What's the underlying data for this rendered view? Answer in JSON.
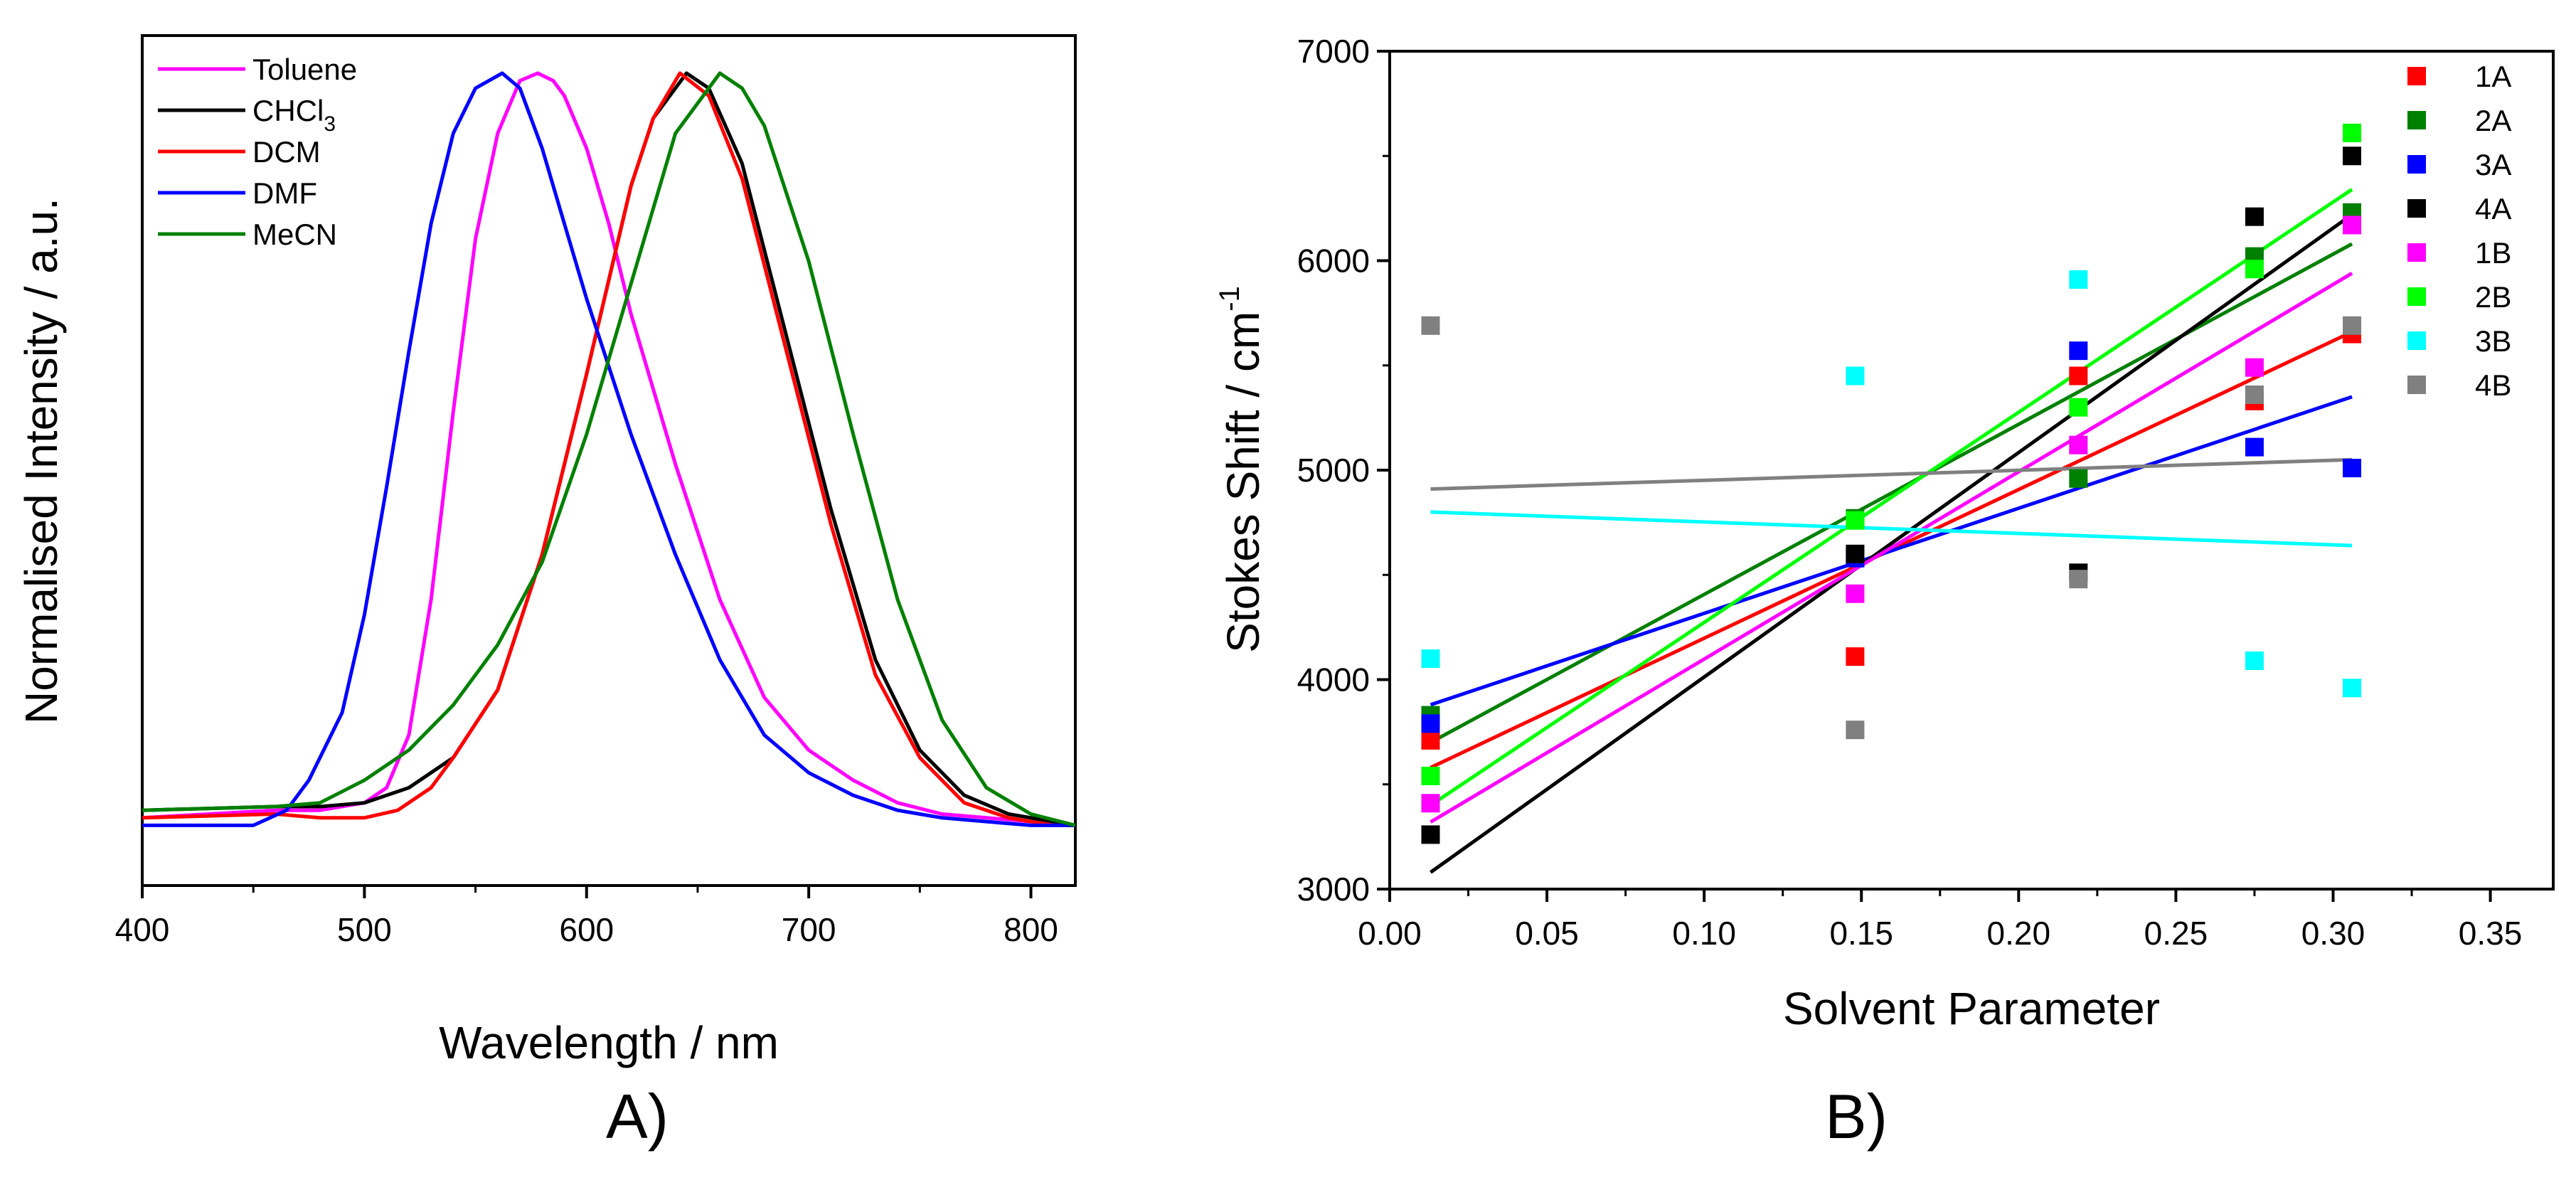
{
  "chart_data": [
    {
      "type": "line",
      "panel_label": "A)",
      "xlabel": "Wavelength / nm",
      "ylabel": "Normalised Intensity / a.u.",
      "xlim": [
        400,
        820
      ],
      "ylim": [
        -0.08,
        1.05
      ],
      "xticks": [
        "400",
        "500",
        "600",
        "700",
        "800"
      ],
      "legend_position": "top-left",
      "series": [
        {
          "name": "Toluene",
          "label_main": "Toluene",
          "label_sub": "",
          "color": "#ff00ff",
          "x": [
            400,
            460,
            480,
            500,
            510,
            520,
            530,
            540,
            550,
            560,
            570,
            578,
            585,
            590,
            600,
            610,
            620,
            640,
            660,
            680,
            700,
            720,
            740,
            760,
            780,
            800,
            820
          ],
          "y": [
            0.01,
            0.02,
            0.02,
            0.03,
            0.05,
            0.12,
            0.3,
            0.55,
            0.78,
            0.92,
            0.99,
            1.0,
            0.99,
            0.97,
            0.9,
            0.8,
            0.68,
            0.48,
            0.3,
            0.17,
            0.1,
            0.06,
            0.03,
            0.015,
            0.01,
            0.005,
            0.0
          ]
        },
        {
          "name": "CHCl3",
          "label_main": "CHCl",
          "label_sub": "3",
          "color": "#000000",
          "x": [
            400,
            460,
            480,
            500,
            520,
            540,
            560,
            580,
            600,
            620,
            630,
            645,
            655,
            670,
            690,
            710,
            730,
            750,
            770,
            790,
            810,
            820
          ],
          "y": [
            0.02,
            0.025,
            0.025,
            0.03,
            0.05,
            0.09,
            0.18,
            0.36,
            0.6,
            0.85,
            0.94,
            1.0,
            0.98,
            0.88,
            0.65,
            0.42,
            0.22,
            0.1,
            0.04,
            0.015,
            0.005,
            0.0
          ]
        },
        {
          "name": "DCM",
          "label_main": "DCM",
          "label_sub": "",
          "color": "#ff0000",
          "x": [
            400,
            460,
            480,
            500,
            515,
            530,
            540,
            560,
            580,
            600,
            620,
            630,
            642,
            655,
            670,
            690,
            710,
            730,
            750,
            770,
            790,
            810,
            820
          ],
          "y": [
            0.01,
            0.015,
            0.01,
            0.01,
            0.02,
            0.05,
            0.09,
            0.18,
            0.36,
            0.6,
            0.85,
            0.94,
            1.0,
            0.97,
            0.86,
            0.63,
            0.4,
            0.2,
            0.09,
            0.03,
            0.01,
            0.0,
            0.0
          ]
        },
        {
          "name": "DMF",
          "label_main": "DMF",
          "label_sub": "",
          "color": "#0000ff",
          "x": [
            400,
            450,
            465,
            475,
            490,
            500,
            510,
            520,
            530,
            540,
            550,
            562,
            570,
            580,
            590,
            600,
            620,
            640,
            660,
            680,
            700,
            720,
            740,
            760,
            780,
            800,
            820
          ],
          "y": [
            0.0,
            0.0,
            0.02,
            0.06,
            0.15,
            0.28,
            0.45,
            0.63,
            0.8,
            0.92,
            0.98,
            1.0,
            0.98,
            0.9,
            0.8,
            0.7,
            0.52,
            0.36,
            0.22,
            0.12,
            0.07,
            0.04,
            0.02,
            0.01,
            0.005,
            0.0,
            0.0
          ]
        },
        {
          "name": "MeCN",
          "label_main": "MeCN",
          "label_sub": "",
          "color": "#008000",
          "x": [
            400,
            460,
            480,
            500,
            520,
            540,
            560,
            580,
            600,
            620,
            640,
            660,
            670,
            680,
            700,
            720,
            740,
            760,
            780,
            800,
            820
          ],
          "y": [
            0.02,
            0.025,
            0.03,
            0.06,
            0.1,
            0.16,
            0.24,
            0.35,
            0.52,
            0.72,
            0.92,
            1.0,
            0.98,
            0.93,
            0.75,
            0.52,
            0.3,
            0.14,
            0.05,
            0.015,
            0.0
          ]
        }
      ]
    },
    {
      "type": "scatter",
      "panel_label": "B)",
      "xlabel": "Solvent Parameter",
      "ylabel_main": "Stokes Shift / cm",
      "ylabel_sup": "-1",
      "xlim": [
        0.0,
        0.37
      ],
      "ylim": [
        3000,
        7000
      ],
      "xticks": [
        "0.00",
        "0.05",
        "0.10",
        "0.15",
        "0.20",
        "0.25",
        "0.30",
        "0.35"
      ],
      "yticks": [
        "3000",
        "4000",
        "5000",
        "6000",
        "7000"
      ],
      "legend_position": "top-right",
      "x": [
        0.013,
        0.148,
        0.219,
        0.275,
        0.306
      ],
      "series": [
        {
          "name": "1A",
          "color": "#ff0000",
          "y": [
            3710,
            4110,
            5450,
            5330,
            5650
          ],
          "fit": [
            3580,
            5660
          ]
        },
        {
          "name": "2A",
          "color": "#008000",
          "y": [
            3830,
            4770,
            4960,
            6020,
            6230
          ],
          "fit": [
            3700,
            6080
          ]
        },
        {
          "name": "3A",
          "color": "#0000ff",
          "y": [
            3790,
            4580,
            5570,
            5110,
            5010
          ],
          "fit": [
            3880,
            5350
          ]
        },
        {
          "name": "4A",
          "color": "#000000",
          "y": [
            3260,
            4600,
            4510,
            6210,
            6500
          ],
          "fit": [
            3080,
            6220
          ]
        },
        {
          "name": "1B",
          "color": "#ff00ff",
          "y": [
            3410,
            4410,
            5120,
            5490,
            6170
          ],
          "fit": [
            3320,
            5940
          ]
        },
        {
          "name": "2B",
          "color": "#00ff00",
          "y": [
            3540,
            4760,
            5300,
            5960,
            6610
          ],
          "fit": [
            3400,
            6340
          ]
        },
        {
          "name": "3B",
          "color": "#00ffff",
          "y": [
            4100,
            5450,
            5910,
            4090,
            3960
          ],
          "fit": [
            4800,
            4640
          ]
        },
        {
          "name": "4B",
          "color": "#808080",
          "y": [
            5690,
            3760,
            4480,
            5360,
            5690
          ],
          "fit": [
            4910,
            5050
          ]
        }
      ]
    }
  ]
}
